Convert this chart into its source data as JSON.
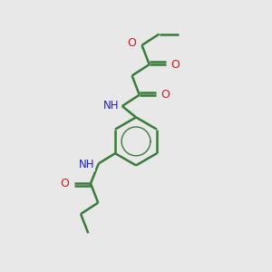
{
  "background_color": "#e8e8e8",
  "bond_color": "#3a7a3a",
  "nitrogen_color": "#2020cc",
  "oxygen_color": "#cc2020",
  "line_width": 1.8,
  "fig_size": [
    3.0,
    3.0
  ],
  "dpi": 100,
  "xlim": [
    0,
    10
  ],
  "ylim": [
    0,
    10
  ]
}
